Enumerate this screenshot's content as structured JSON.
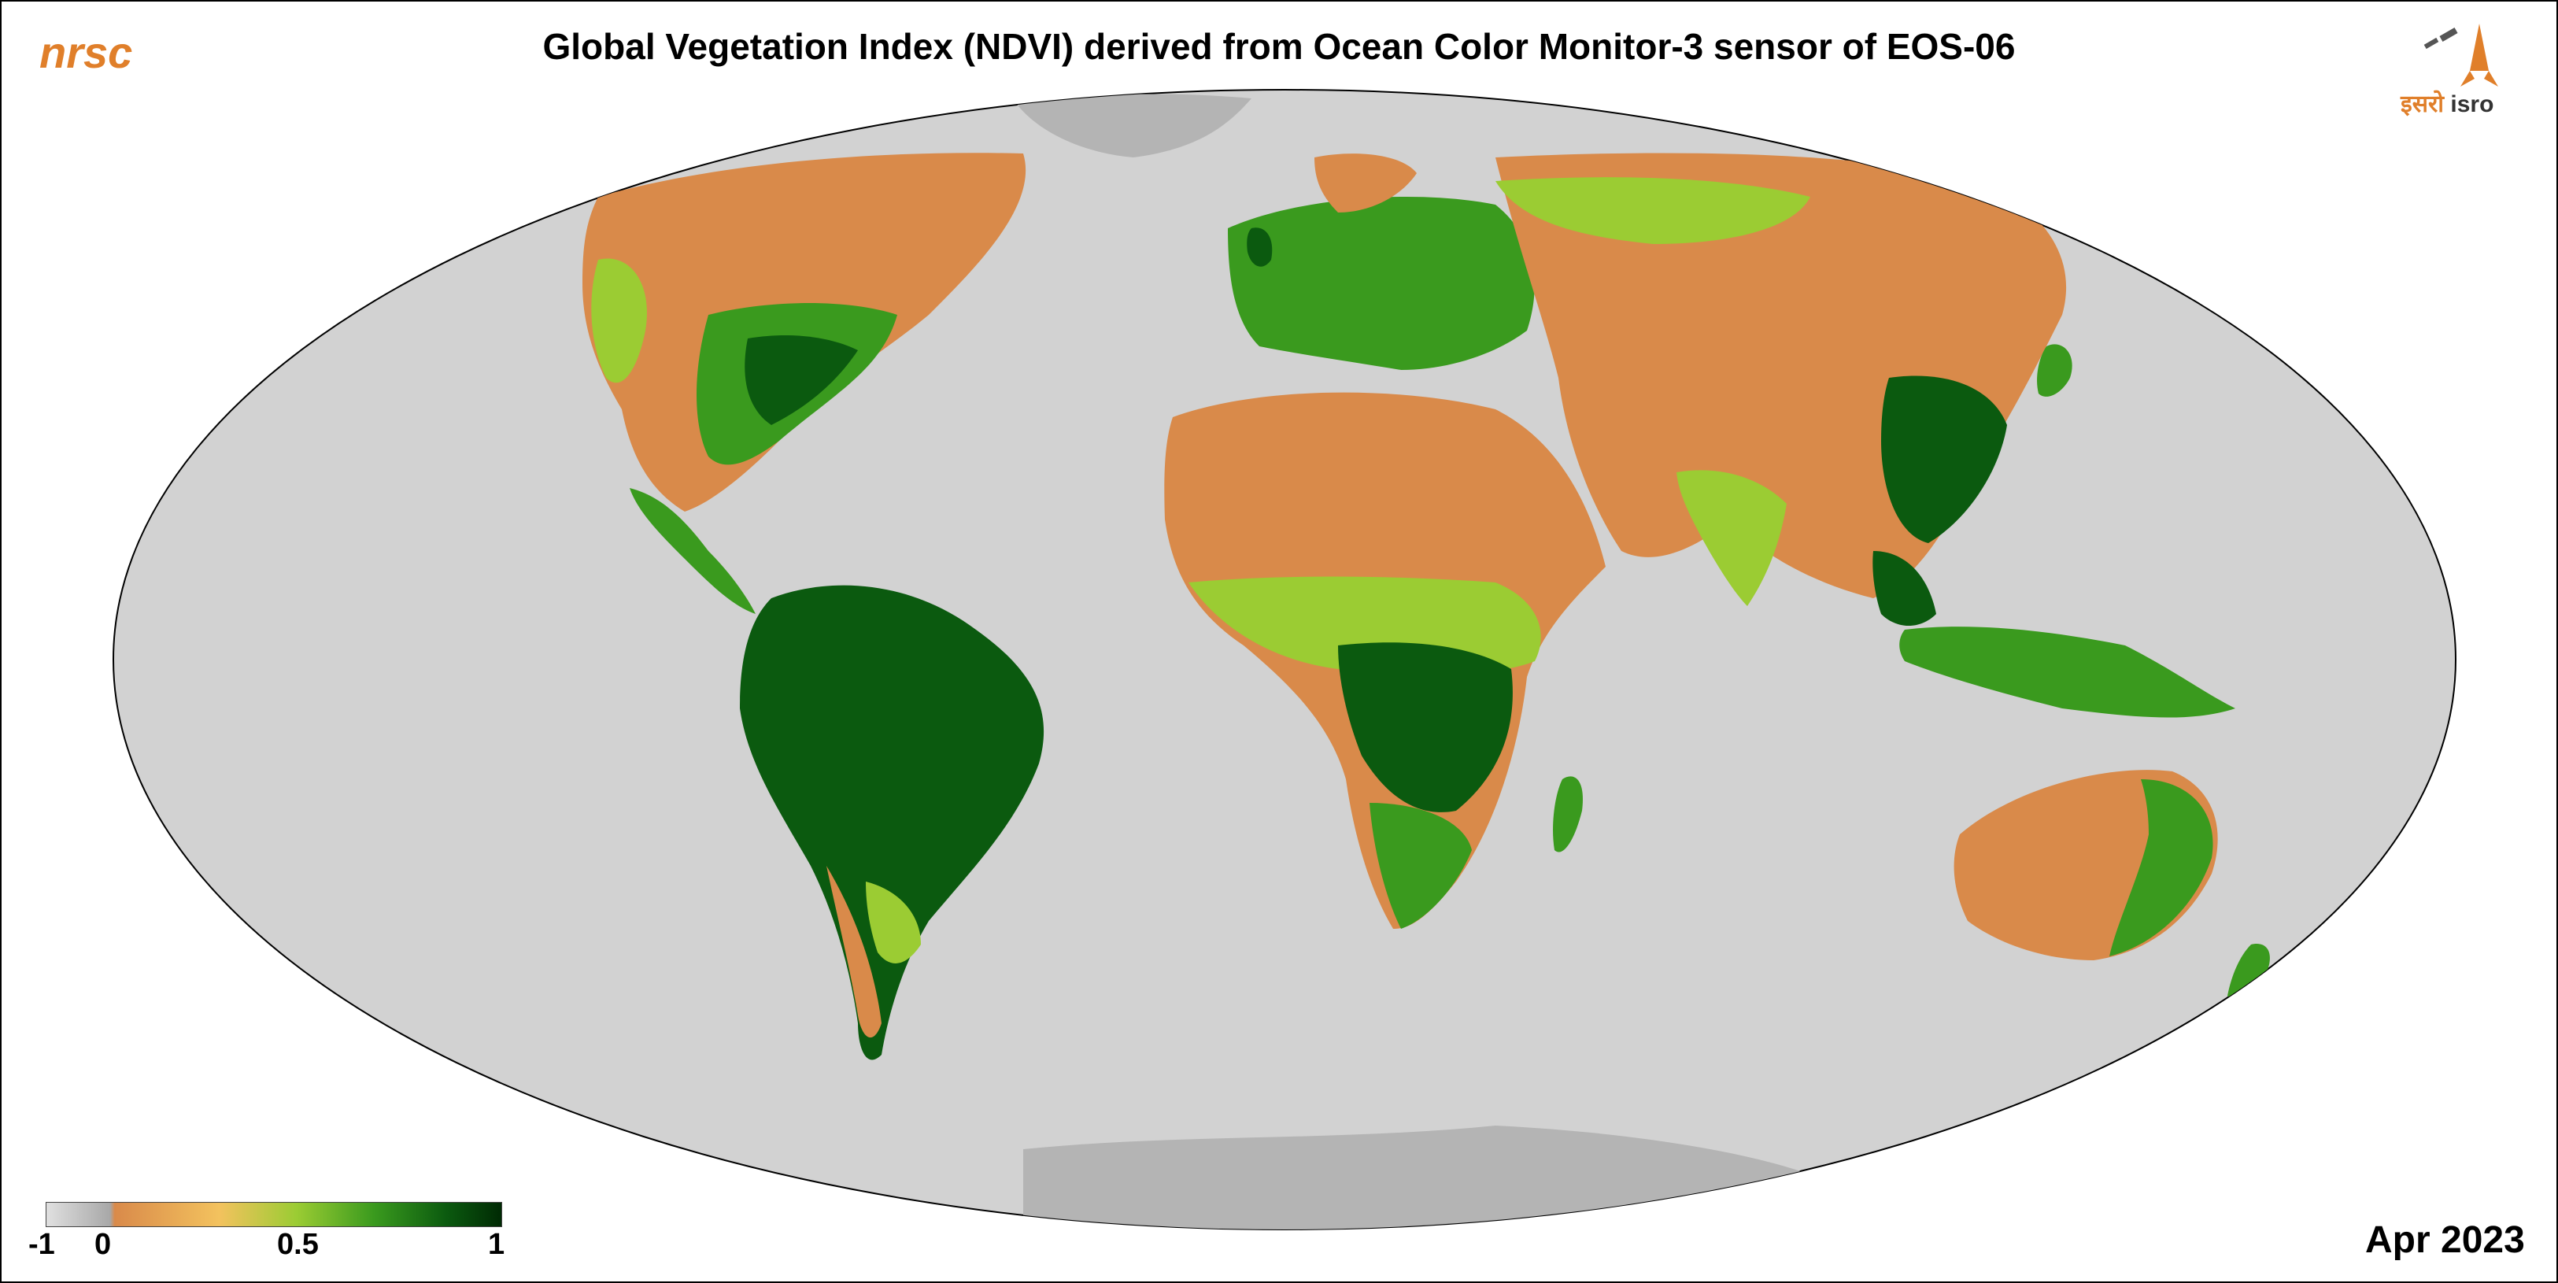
{
  "logo_left": "nrsc",
  "title": "Global Vegetation Index (NDVI) derived from Ocean Color Monitor-3 sensor of EOS-06",
  "logo_right": {
    "devanagari": "इसरो",
    "latin": "isro"
  },
  "date": "Apr 2023",
  "legend": {
    "ticks": [
      "-1",
      "0",
      "0.5",
      "1"
    ],
    "colors": [
      "#e0e0e0",
      "#a8a8a8",
      "#d98a4a",
      "#f3c25e",
      "#9bcc33",
      "#3a9a1e",
      "#0b5a0f",
      "#002a04"
    ]
  },
  "map_colors": {
    "ocean": "#d2d2d2",
    "ice": "#b4b4b4",
    "desert": "#d98a4a",
    "dry": "#e8a860",
    "sparse": "#9bcc33",
    "vegetation": "#3a9a1e",
    "forest": "#0b5a0f"
  }
}
